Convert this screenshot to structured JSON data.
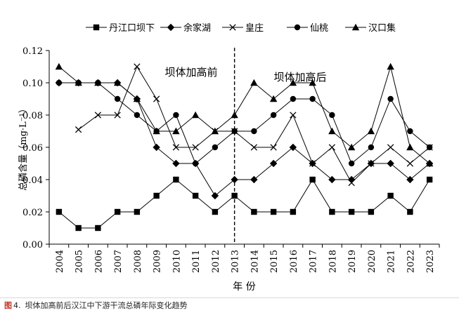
{
  "caption": {
    "fig_prefix": "图",
    "fig_number": "4.",
    "text": "坝体加高前后汉江中下游干流总磷年际变化趋势"
  },
  "chart_data": {
    "type": "line",
    "xlabel": "年  份",
    "ylabel": "总磷含量（mg·L⁻¹）",
    "ylim": [
      0,
      0.12
    ],
    "yticks": [
      "0.00",
      "0.02",
      "0.04",
      "0.06",
      "0.08",
      "0.10",
      "0.12"
    ],
    "categories": [
      "2004",
      "2005",
      "2006",
      "2007",
      "2008",
      "2009",
      "2010",
      "2011",
      "2012",
      "2013",
      "2014",
      "2015",
      "2016",
      "2017",
      "2018",
      "2019",
      "2020",
      "2021",
      "2022",
      "2023"
    ],
    "grid": false,
    "legend_position": "top",
    "divider_year": "2013",
    "annotations": {
      "before": "坝体加高前",
      "after": "坝体加高后"
    },
    "series": [
      {
        "name": "丹江口坝下",
        "marker": "square",
        "values": [
          0.02,
          0.01,
          0.01,
          0.02,
          0.02,
          0.03,
          0.04,
          0.03,
          0.02,
          0.03,
          0.02,
          0.02,
          0.02,
          0.04,
          0.02,
          0.02,
          0.02,
          0.03,
          0.02,
          0.04
        ]
      },
      {
        "name": "余家湖",
        "marker": "diamond",
        "values": [
          0.1,
          0.1,
          0.1,
          0.1,
          0.09,
          0.06,
          0.05,
          0.05,
          0.03,
          0.04,
          0.04,
          0.05,
          0.06,
          0.05,
          0.04,
          0.04,
          0.05,
          0.05,
          0.04,
          0.05
        ]
      },
      {
        "name": "皇庄",
        "marker": "x",
        "values": [
          null,
          0.071,
          0.08,
          0.08,
          0.11,
          0.09,
          0.06,
          0.06,
          0.07,
          0.07,
          0.06,
          0.06,
          0.08,
          0.05,
          0.06,
          0.038,
          0.05,
          0.06,
          0.05,
          0.06
        ]
      },
      {
        "name": "仙桃",
        "marker": "circle",
        "values": [
          0.1,
          0.1,
          0.1,
          0.09,
          0.08,
          0.07,
          0.08,
          0.05,
          0.06,
          0.07,
          0.07,
          0.08,
          0.09,
          0.09,
          0.08,
          0.05,
          0.06,
          0.09,
          0.07,
          0.06
        ]
      },
      {
        "name": "汉口集",
        "marker": "triangle",
        "values": [
          0.11,
          0.1,
          0.1,
          0.1,
          0.09,
          0.07,
          0.07,
          0.08,
          0.07,
          0.08,
          0.1,
          0.09,
          0.1,
          0.1,
          0.07,
          0.06,
          0.07,
          0.11,
          0.06,
          0.05
        ]
      }
    ]
  }
}
